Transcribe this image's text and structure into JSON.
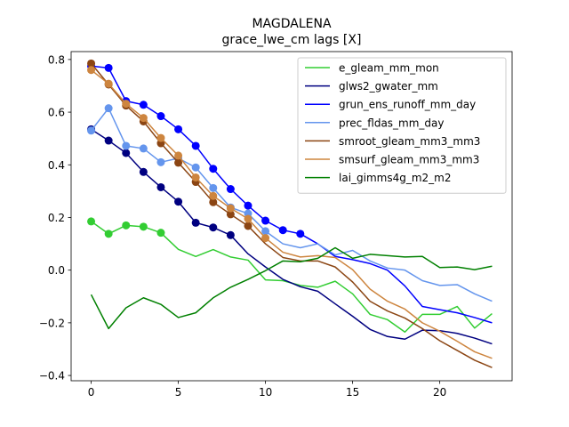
{
  "chart_data": {
    "type": "line",
    "title": "MAGDALENA",
    "subtitle": "grace_lwe_cm lags [X]",
    "xlabel": "",
    "ylabel": "",
    "xlim": [
      -1.15,
      24.15
    ],
    "ylim": [
      -0.42,
      0.83
    ],
    "xticks": [
      0,
      5,
      10,
      15,
      20
    ],
    "yticks": [
      -0.4,
      -0.2,
      0.0,
      0.2,
      0.4,
      0.6,
      0.8
    ],
    "ytick_labels": [
      "−0.4",
      "−0.2",
      "0.0",
      "0.2",
      "0.4",
      "0.6",
      "0.8"
    ],
    "grid": false,
    "legend_position": "top-right",
    "x": [
      0,
      1,
      2,
      3,
      4,
      5,
      6,
      7,
      8,
      9,
      10,
      11,
      12,
      13,
      14,
      15,
      16,
      17,
      18,
      19,
      20,
      21,
      22,
      23
    ],
    "series": [
      {
        "name": "e_gleam_mm_mon",
        "color": "#32cd32",
        "marker_count": 5,
        "values": [
          0.185,
          0.138,
          0.17,
          0.165,
          0.142,
          0.079,
          0.052,
          0.078,
          0.05,
          0.038,
          -0.037,
          -0.04,
          -0.058,
          -0.065,
          -0.042,
          -0.09,
          -0.168,
          -0.188,
          -0.235,
          -0.168,
          -0.168,
          -0.138,
          -0.22,
          -0.165
        ]
      },
      {
        "name": "glws2_gwater_mm",
        "color": "#000080",
        "marker_count": 9,
        "values": [
          0.535,
          0.492,
          0.445,
          0.373,
          0.315,
          0.26,
          0.18,
          0.162,
          0.133,
          0.062,
          0.012,
          -0.035,
          -0.063,
          -0.08,
          -0.128,
          -0.175,
          -0.225,
          -0.252,
          -0.262,
          -0.228,
          -0.23,
          -0.24,
          -0.258,
          -0.28
        ]
      },
      {
        "name": "grun_ens_runoff_mm_day",
        "color": "#0000ff",
        "marker_count": 13,
        "values": [
          0.775,
          0.768,
          0.642,
          0.628,
          0.585,
          0.535,
          0.472,
          0.385,
          0.308,
          0.245,
          0.188,
          0.152,
          0.138,
          0.1,
          0.052,
          0.04,
          0.025,
          0.0,
          -0.06,
          -0.138,
          -0.15,
          -0.162,
          -0.18,
          -0.2
        ]
      },
      {
        "name": "prec_fldas_mm_day",
        "color": "#6495ed",
        "marker_count": 11,
        "values": [
          0.53,
          0.615,
          0.472,
          0.462,
          0.41,
          0.425,
          0.39,
          0.312,
          0.238,
          0.215,
          0.148,
          0.1,
          0.085,
          0.1,
          0.058,
          0.075,
          0.035,
          0.008,
          0.0,
          -0.04,
          -0.058,
          -0.055,
          -0.09,
          -0.118
        ]
      },
      {
        "name": "smroot_gleam_mm3_mm3",
        "color": "#8b4513",
        "marker_count": 10,
        "values": [
          0.785,
          0.705,
          0.625,
          0.565,
          0.482,
          0.408,
          0.335,
          0.258,
          0.212,
          0.168,
          0.1,
          0.048,
          0.035,
          0.035,
          0.012,
          -0.045,
          -0.118,
          -0.155,
          -0.182,
          -0.222,
          -0.268,
          -0.305,
          -0.342,
          -0.37
        ]
      },
      {
        "name": "smsurf_gleam_mm3_mm3",
        "color": "#cd853f",
        "marker_count": 11,
        "values": [
          0.76,
          0.708,
          0.632,
          0.578,
          0.502,
          0.435,
          0.352,
          0.282,
          0.235,
          0.195,
          0.122,
          0.068,
          0.05,
          0.055,
          0.048,
          0.002,
          -0.072,
          -0.118,
          -0.148,
          -0.2,
          -0.232,
          -0.27,
          -0.31,
          -0.335
        ]
      },
      {
        "name": "lai_gimms4g_m2_m2",
        "color": "#008000",
        "marker_count": 0,
        "values": [
          -0.093,
          -0.222,
          -0.143,
          -0.105,
          -0.13,
          -0.18,
          -0.162,
          -0.105,
          -0.065,
          -0.035,
          -0.002,
          0.035,
          0.032,
          0.045,
          0.085,
          0.045,
          0.06,
          0.055,
          0.05,
          0.052,
          0.01,
          0.012,
          0.002,
          0.015
        ]
      }
    ]
  }
}
